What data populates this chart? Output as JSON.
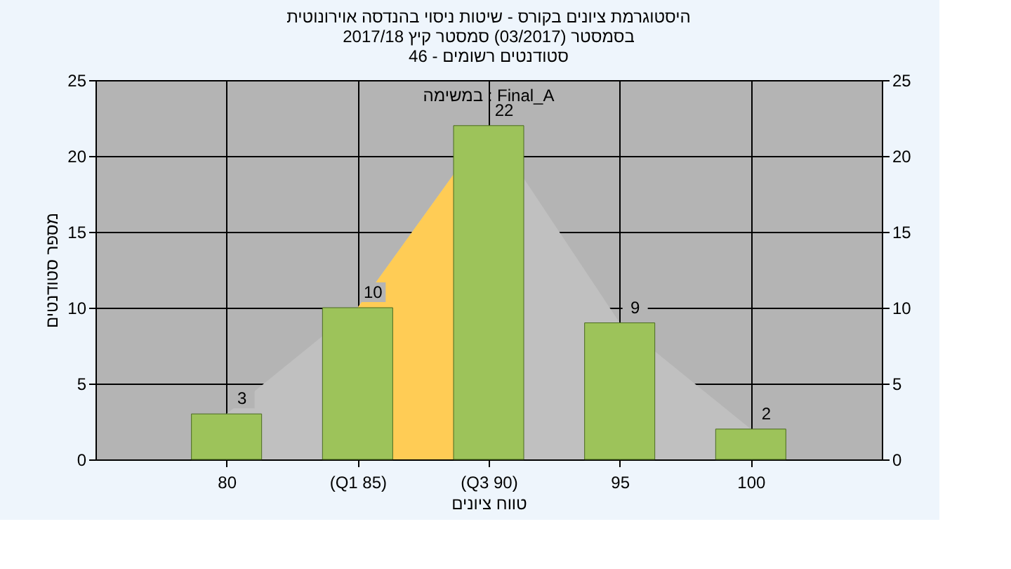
{
  "chart_data": {
    "type": "bar",
    "title": "היסטוגרמת ציונים בקורס - שיטות ניסוי בהנדסה אוירונוטית\nבסמסטר  (03/2017)  סמסטר קיץ 2017/18\nסטודנטים רשומים - 46",
    "xlabel": "טווח ציונים",
    "ylabel": "מספר סטודנטים",
    "annotations": [
      "במשימה : Final_A"
    ],
    "categories": [
      "80",
      "(Q1 85)",
      "(Q3 90)",
      "95",
      "100"
    ],
    "series": [
      {
        "type": "area",
        "color": "#c0c0c0",
        "values": [
          3,
          10,
          22,
          9,
          2
        ]
      },
      {
        "type": "area",
        "color": "#ffcc55",
        "values": [
          null,
          10,
          22,
          null,
          null
        ]
      },
      {
        "color": "#9dc35a",
        "values": [
          3,
          10,
          22,
          9,
          2
        ],
        "value_labels": [
          "3",
          "10",
          "22",
          "9",
          "2"
        ]
      }
    ],
    "ylim": [
      0,
      25
    ],
    "yticks": [
      0,
      5,
      10,
      15,
      20,
      25
    ],
    "y2lim": [
      0,
      25
    ],
    "y2ticks": [
      0,
      5,
      10,
      15,
      20,
      25
    ],
    "grid": true
  }
}
